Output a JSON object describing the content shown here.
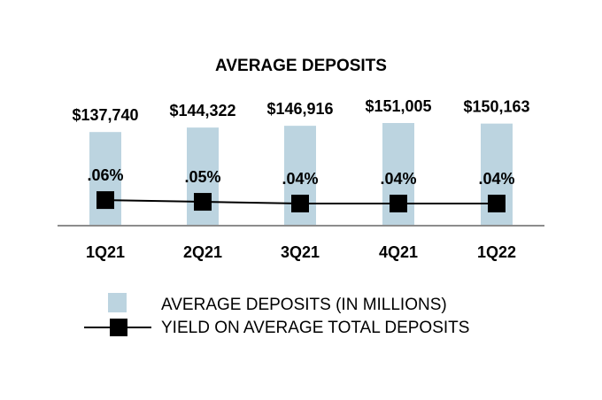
{
  "chart_data": {
    "type": "bar",
    "title": "AVERAGE DEPOSITS",
    "categories": [
      "1Q21",
      "2Q21",
      "3Q21",
      "4Q21",
      "1Q22"
    ],
    "series": [
      {
        "name": "AVERAGE DEPOSITS (IN MILLIONS)",
        "kind": "bar",
        "values": [
          137740,
          144322,
          146916,
          151005,
          150163
        ],
        "labels": [
          "$137,740",
          "$144,322",
          "$146,916",
          "$151,005",
          "$150,163"
        ],
        "color": "#bcd4e0"
      },
      {
        "name": "YIELD ON AVERAGE TOTAL DEPOSITS",
        "kind": "line",
        "values": [
          0.06,
          0.05,
          0.04,
          0.04,
          0.04
        ],
        "labels": [
          ".06%",
          ".05%",
          ".04%",
          ".04%",
          ".04%"
        ],
        "color": "#000000"
      }
    ],
    "xlabel": "",
    "ylabel": "",
    "grid": false,
    "legend_position": "bottom"
  }
}
